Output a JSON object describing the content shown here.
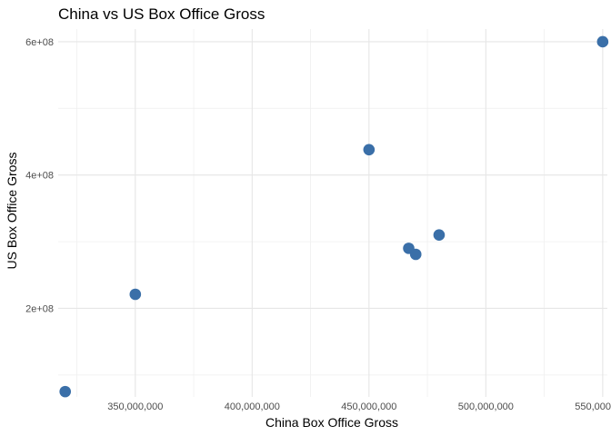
{
  "chart_data": {
    "type": "scatter",
    "title": "China vs US Box Office Gross",
    "xlabel": "China Box Office Gross",
    "ylabel": "US Box Office Gross",
    "xlim": [
      317000000,
      552000000
    ],
    "ylim": [
      67000000,
      619000000
    ],
    "x_ticks": [
      350000000,
      400000000,
      450000000,
      500000000,
      550000000
    ],
    "x_tick_labels": [
      "350,000,000",
      "400,000,000",
      "450,000,000",
      "500,000,000",
      "550,000,000"
    ],
    "x_minor_ticks": [
      325000000,
      375000000,
      425000000,
      475000000,
      525000000
    ],
    "y_ticks": [
      200000000,
      400000000,
      600000000
    ],
    "y_tick_labels": [
      "2e+08",
      "4e+08",
      "6e+08"
    ],
    "y_minor_ticks": [
      100000000,
      300000000,
      500000000
    ],
    "grid": true,
    "legend": "none",
    "point_color": "#3a6fa8",
    "points": [
      {
        "x": 320000000,
        "y": 75000000
      },
      {
        "x": 350000000,
        "y": 221000000
      },
      {
        "x": 450000000,
        "y": 438000000
      },
      {
        "x": 467000000,
        "y": 290000000
      },
      {
        "x": 470000000,
        "y": 281000000
      },
      {
        "x": 480000000,
        "y": 310000000
      },
      {
        "x": 550000000,
        "y": 600000000
      }
    ]
  }
}
